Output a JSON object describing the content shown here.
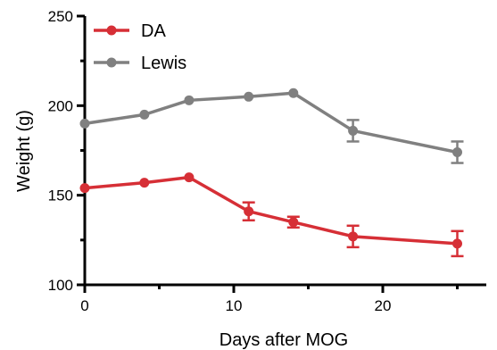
{
  "chart_data": {
    "type": "line",
    "xlabel": "Days after MOG",
    "ylabel": "Weight (g)",
    "xlim": [
      0,
      27
    ],
    "ylim": [
      100,
      250
    ],
    "xticks": [
      0,
      10,
      20
    ],
    "yticks": [
      100,
      150,
      200,
      250
    ],
    "x_minor_ticks": [
      5,
      15,
      25
    ],
    "y_minor_ticks": [
      125,
      175,
      225
    ],
    "legend": {
      "position": "top-left"
    },
    "series": [
      {
        "name": "DA",
        "color": "#d62f36",
        "marker": "circle",
        "points": [
          {
            "x": 0,
            "y": 154,
            "err": 0
          },
          {
            "x": 4,
            "y": 157,
            "err": 0
          },
          {
            "x": 7,
            "y": 160,
            "err": 0
          },
          {
            "x": 11,
            "y": 141,
            "err": 5
          },
          {
            "x": 14,
            "y": 135,
            "err": 3
          },
          {
            "x": 18,
            "y": 127,
            "err": 6
          },
          {
            "x": 25,
            "y": 123,
            "err": 7
          }
        ]
      },
      {
        "name": "Lewis",
        "color": "#808080",
        "marker": "circle",
        "points": [
          {
            "x": 0,
            "y": 190,
            "err": 0
          },
          {
            "x": 4,
            "y": 195,
            "err": 0
          },
          {
            "x": 7,
            "y": 203,
            "err": 0
          },
          {
            "x": 11,
            "y": 205,
            "err": 0
          },
          {
            "x": 14,
            "y": 207,
            "err": 0
          },
          {
            "x": 18,
            "y": 186,
            "err": 6
          },
          {
            "x": 25,
            "y": 174,
            "err": 6
          }
        ]
      }
    ]
  }
}
